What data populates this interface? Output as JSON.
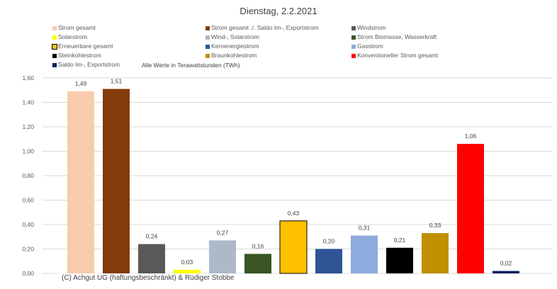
{
  "chart_data": {
    "type": "bar",
    "title": "Dienstag, 2.2.2021",
    "note": "Alle Werte in Terawattstunden (TWh)",
    "footer": "(C) Achgut UG (haftungsbeschränkt) & Rüdiger Stobbe",
    "xlabel": "",
    "ylabel": "",
    "ylim": [
      0,
      1.6
    ],
    "yticks": [
      "0,00",
      "0,20",
      "0,40",
      "0,60",
      "0,80",
      "1,00",
      "1,20",
      "1,40",
      "1,60"
    ],
    "grid": true,
    "legend_position": "top",
    "categories": [
      "Strom gesamt",
      "Strom gesamt ./. Saldo Im-, Exportstrom",
      "Windstrom",
      "Solarstrom",
      "Wind-, Solarstrom",
      "Strom Biomasse, Wasserkraft",
      "Erneuerbare gesamt",
      "Kernenergiestrom",
      "Gasstrom",
      "Steinkohlestrom",
      "Braunkohlestrom",
      "Konventioneller Strom gesamt",
      "Saldo Im-, Exportstrom"
    ],
    "values": [
      1.49,
      1.51,
      0.24,
      0.03,
      0.27,
      0.16,
      0.43,
      0.2,
      0.31,
      0.21,
      0.33,
      1.06,
      0.02
    ],
    "labels": [
      "1,49",
      "1,51",
      "0,24",
      "0,03",
      "0,27",
      "0,16",
      "0,43",
      "0,20",
      "0,31",
      "0,21",
      "0,33",
      "1,06",
      "0,02"
    ],
    "colors": [
      "#F8CBAD",
      "#843C0C",
      "#595959",
      "#FFFF00",
      "#ADB9CA",
      "#375623",
      "#FFC000",
      "#2F5597",
      "#8FAADC",
      "#000000",
      "#BF9000",
      "#FF0000",
      "#002060"
    ]
  }
}
